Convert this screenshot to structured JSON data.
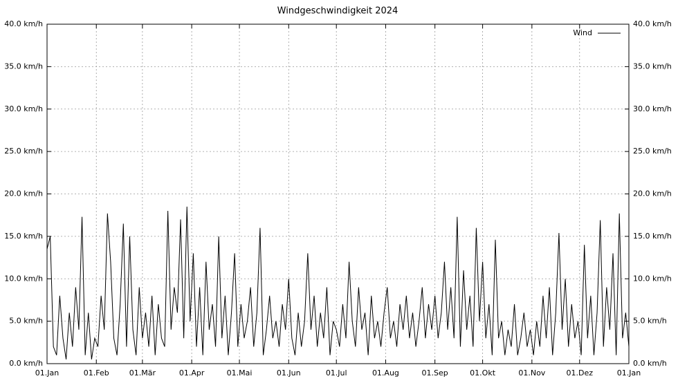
{
  "chart_data": {
    "type": "line",
    "title": "Windgeschwindigkeit 2024",
    "xlim": [
      0,
      366
    ],
    "xticks": [
      {
        "value": 0,
        "label": "01.Jan"
      },
      {
        "value": 31,
        "label": "01.Feb"
      },
      {
        "value": 60,
        "label": "01.Mär"
      },
      {
        "value": 91,
        "label": "01.Apr"
      },
      {
        "value": 121,
        "label": "01.Mai"
      },
      {
        "value": 152,
        "label": "01.Jun"
      },
      {
        "value": 182,
        "label": "01.Jul"
      },
      {
        "value": 213,
        "label": "01.Aug"
      },
      {
        "value": 244,
        "label": "01.Sep"
      },
      {
        "value": 274,
        "label": "01.Okt"
      },
      {
        "value": 305,
        "label": "01.Nov"
      },
      {
        "value": 335,
        "label": "01.Dez"
      },
      {
        "value": 366,
        "label": "01.Jan"
      }
    ],
    "ylim": [
      0,
      40
    ],
    "yticks": [
      {
        "value": 0,
        "label": "0.0 km/h"
      },
      {
        "value": 5,
        "label": "5.0 km/h"
      },
      {
        "value": 10,
        "label": "10.0 km/h"
      },
      {
        "value": 15,
        "label": "15.0 km/h"
      },
      {
        "value": 20,
        "label": "20.0 km/h"
      },
      {
        "value": 25,
        "label": "25.0 km/h"
      },
      {
        "value": 30,
        "label": "30.0 km/h"
      },
      {
        "value": 35,
        "label": "35.0 km/h"
      },
      {
        "value": 40,
        "label": "40.0 km/h"
      }
    ],
    "grid": true,
    "legend": "top-right",
    "x": [
      0,
      2,
      4,
      6,
      8,
      10,
      12,
      14,
      16,
      18,
      20,
      22,
      24,
      26,
      28,
      30,
      32,
      34,
      36,
      38,
      40,
      42,
      44,
      46,
      48,
      50,
      52,
      54,
      56,
      58,
      60,
      62,
      64,
      66,
      68,
      70,
      72,
      74,
      76,
      78,
      80,
      82,
      84,
      86,
      88,
      90,
      92,
      94,
      96,
      98,
      100,
      102,
      104,
      106,
      108,
      110,
      112,
      114,
      116,
      118,
      120,
      122,
      124,
      126,
      128,
      130,
      132,
      134,
      136,
      138,
      140,
      142,
      144,
      146,
      148,
      150,
      152,
      154,
      156,
      158,
      160,
      162,
      164,
      166,
      168,
      170,
      172,
      174,
      176,
      178,
      180,
      182,
      184,
      186,
      188,
      190,
      192,
      194,
      196,
      198,
      200,
      202,
      204,
      206,
      208,
      210,
      212,
      214,
      216,
      218,
      220,
      222,
      224,
      226,
      228,
      230,
      232,
      234,
      236,
      238,
      240,
      242,
      244,
      246,
      248,
      250,
      252,
      254,
      256,
      258,
      260,
      262,
      264,
      266,
      268,
      270,
      272,
      274,
      276,
      278,
      280,
      282,
      284,
      286,
      288,
      290,
      292,
      294,
      296,
      298,
      300,
      302,
      304,
      306,
      308,
      310,
      312,
      314,
      316,
      318,
      320,
      322,
      324,
      326,
      328,
      330,
      332,
      334,
      336,
      338,
      340,
      342,
      344,
      346,
      348,
      350,
      352,
      354,
      356,
      358,
      360,
      362,
      364,
      366
    ],
    "series": [
      {
        "name": "Wind",
        "color": "#000000",
        "values": [
          13.5,
          15,
          2,
          1,
          8,
          3,
          0.5,
          6,
          2,
          9,
          4,
          17.3,
          1,
          6,
          0.5,
          3,
          2,
          8,
          4,
          17.7,
          12,
          3,
          1,
          7,
          16.5,
          2,
          15,
          4,
          1,
          9,
          3,
          6,
          2,
          8,
          1,
          7,
          3,
          2,
          18,
          4,
          9,
          6,
          17,
          3,
          18.5,
          5,
          13,
          2,
          9,
          1,
          12,
          4,
          7,
          2,
          15,
          3,
          8,
          1,
          6,
          13,
          2,
          7,
          3,
          5,
          9,
          2,
          6,
          16,
          1,
          4,
          8,
          3,
          5,
          2,
          7,
          4,
          10,
          3,
          1,
          6,
          2,
          5,
          13,
          4,
          8,
          2,
          6,
          3,
          9,
          1,
          5,
          4,
          2,
          7,
          3,
          12,
          5,
          2,
          9,
          4,
          6,
          1,
          8,
          3,
          5,
          2,
          6,
          9,
          3,
          5,
          2,
          7,
          4,
          8,
          3,
          6,
          2,
          5,
          9,
          3,
          7,
          4,
          8,
          3,
          6,
          12,
          4,
          9,
          3,
          17.3,
          2,
          11,
          4,
          8,
          2,
          16,
          5,
          12,
          3,
          7,
          1,
          14.6,
          3,
          5,
          1,
          4,
          2,
          7,
          1,
          3,
          6,
          2,
          4,
          1,
          5,
          2,
          8,
          3,
          9,
          1,
          6,
          15.4,
          4,
          10,
          2,
          7,
          3,
          5,
          1,
          14,
          3,
          8,
          1,
          6,
          16.9,
          2,
          9,
          4,
          13,
          1,
          17.7,
          3,
          6,
          2
        ]
      }
    ]
  }
}
